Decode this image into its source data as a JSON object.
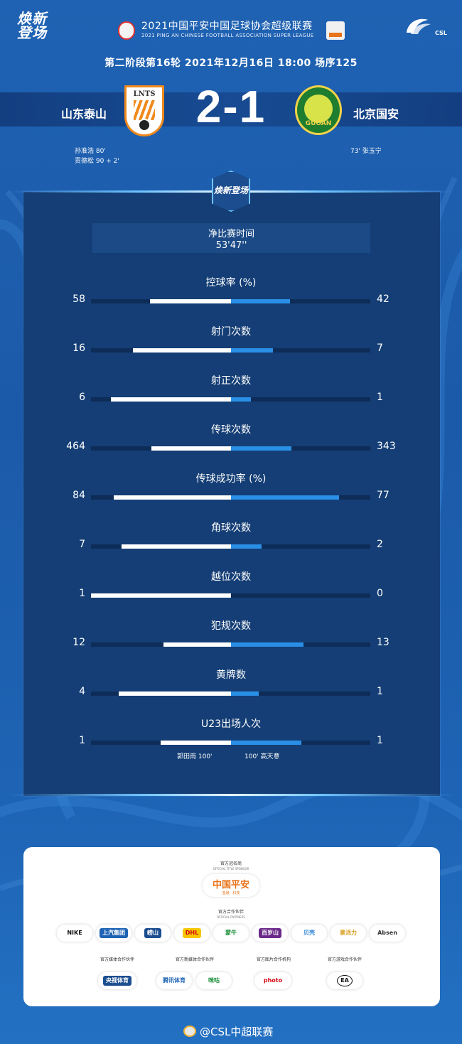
{
  "header": {
    "brand_left": "焕新登场",
    "league_title": "2021中国平安中国足球协会超级联赛",
    "league_subtitle": "2021 PING AN CHINESE FOOTBALL ASSOCIATION SUPER LEAGUE",
    "csl_label": "CSL",
    "match_info": "第二阶段第16轮  2021年12月16日 18:00 场序125"
  },
  "match": {
    "home_team": "山东泰山",
    "away_team": "北京国安",
    "home_logo_text": "LNTS",
    "away_logo_text": "GUOAN",
    "score": "2-1",
    "home_scorers": [
      "孙准浩  80'",
      "贡德松  90 + 2'"
    ],
    "away_scorers": [
      "73'  张玉宁"
    ]
  },
  "stats_panel": {
    "emblem_text": "焕新登场",
    "time_label": "净比赛时间",
    "time_value": "53'47''",
    "stats": [
      {
        "label": "控球率 (%)",
        "home": "58",
        "away": "42",
        "home_frac": 0.58,
        "away_frac": 0.42
      },
      {
        "label": "射门次数",
        "home": "16",
        "away": "7",
        "home_frac": 0.7,
        "away_frac": 0.3
      },
      {
        "label": "射正次数",
        "home": "6",
        "away": "1",
        "home_frac": 0.86,
        "away_frac": 0.14
      },
      {
        "label": "传球次数",
        "home": "464",
        "away": "343",
        "home_frac": 0.57,
        "away_frac": 0.43
      },
      {
        "label": "传球成功率 (%)",
        "home": "84",
        "away": "77",
        "home_frac": 0.84,
        "away_frac": 0.77
      },
      {
        "label": "角球次数",
        "home": "7",
        "away": "2",
        "home_frac": 0.78,
        "away_frac": 0.22
      },
      {
        "label": "越位次数",
        "home": "1",
        "away": "0",
        "home_frac": 1.0,
        "away_frac": 0.0
      },
      {
        "label": "犯规次数",
        "home": "12",
        "away": "13",
        "home_frac": 0.48,
        "away_frac": 0.52
      },
      {
        "label": "黄牌数",
        "home": "4",
        "away": "1",
        "home_frac": 0.8,
        "away_frac": 0.2
      },
      {
        "label": "U23出场人次",
        "home": "1",
        "away": "1",
        "home_frac": 0.5,
        "away_frac": 0.5
      }
    ],
    "u23_home_note": "郭田雨   100'",
    "u23_away_note": "100'   高天意"
  },
  "sponsors": {
    "title_caption": "官方冠名商",
    "title_caption_en": "OFFICIAL TITLE SPONSOR",
    "title_sponsor": "中国平安",
    "title_sponsor_sub": "金融 · 科技",
    "partners_caption": "官方合作伙伴",
    "partners_caption_en": "OFFICIAL PARTNERS",
    "partners": [
      "NIKE",
      "上汽集团",
      "崂山",
      "DHL",
      "蒙牛",
      "百岁山",
      "贝壳",
      "景活力",
      "Absen"
    ],
    "media_caption": "官方媒体合作伙伴",
    "newmedia_caption": "官方新媒体合作伙伴",
    "photo_caption": "官方图片合作机构",
    "game_caption": "官方游戏合作伙伴",
    "media": [
      "央视体育"
    ],
    "newmedia": [
      "腾讯体育",
      "咪咕"
    ],
    "photo": [
      "photo"
    ],
    "game": [
      "EA"
    ]
  },
  "footer": {
    "weibo_handle": "@CSL中超联赛"
  }
}
